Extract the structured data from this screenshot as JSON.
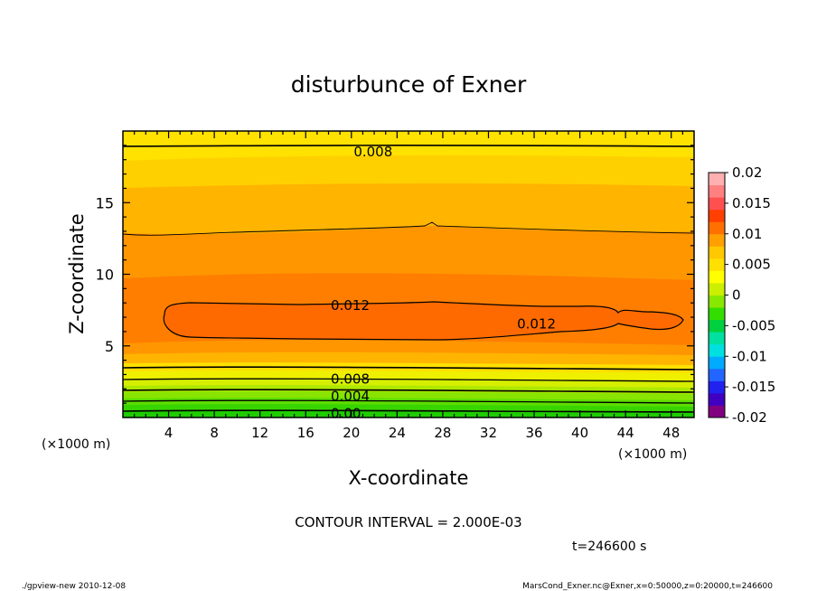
{
  "chart_data": {
    "type": "contour",
    "title": "disturbunce of Exner",
    "xlabel": "X-coordinate",
    "ylabel": "Z-coordinate",
    "x_unit": "(×1000 m)",
    "x_unit_right": "(×1000 m)",
    "xlim": [
      0,
      50
    ],
    "ylim": [
      0,
      20
    ],
    "x_ticks": [
      4,
      8,
      12,
      16,
      20,
      24,
      28,
      32,
      36,
      40,
      44,
      48
    ],
    "y_ticks": [
      5,
      10,
      15
    ],
    "colorbar": {
      "ticks": [
        "0.02",
        "0.015",
        "0.01",
        "0.005",
        "0",
        "-0.005",
        "-0.01",
        "-0.015",
        "-0.02"
      ],
      "range": [
        -0.02,
        0.02
      ],
      "colors": [
        "#800080",
        "#4000c0",
        "#2222ee",
        "#2266ff",
        "#00aaff",
        "#00e0e0",
        "#00e0a0",
        "#00d040",
        "#33dd00",
        "#88e800",
        "#ccee00",
        "#ffff00",
        "#ffe000",
        "#ffc800",
        "#ffa000",
        "#ff7000",
        "#ff4000",
        "#ff5050",
        "#ff8080",
        "#ffb0b0"
      ]
    },
    "contour_interval": "CONTOUR INTERVAL = 2.000E-03",
    "contour_labels": [
      {
        "text": "0.008",
        "x": 20.2,
        "z": 18.6
      },
      {
        "text": "0.012",
        "x": 18.2,
        "z": 7.9
      },
      {
        "text": "0.012",
        "x": 34.5,
        "z": 6.6
      },
      {
        "text": "0.008",
        "x": 18.2,
        "z": 2.75
      },
      {
        "text": "0.004",
        "x": 18.2,
        "z": 1.55
      },
      {
        "text": "0.00",
        "x": 18.2,
        "z": 0.35
      }
    ],
    "time": "t=246600 s"
  },
  "footer": {
    "left": "./gpview-new   2010-12-08",
    "right": "MarsCond_Exner.nc@Exner,x=0:50000,z=0:20000,t=246600"
  }
}
